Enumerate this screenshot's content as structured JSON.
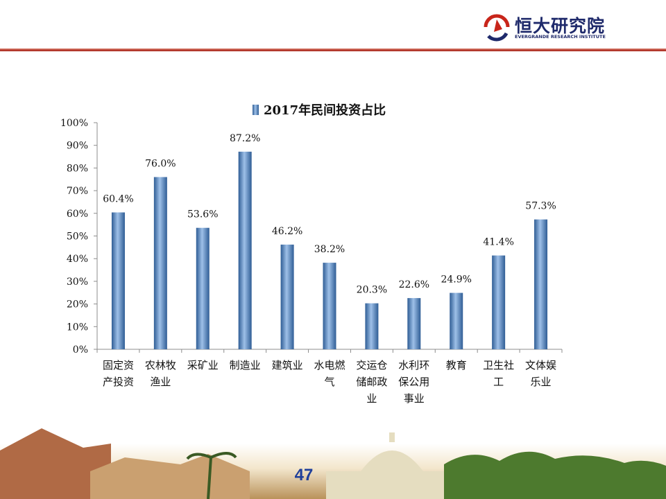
{
  "brand": {
    "name": "恒大研究院",
    "subtitle": "EVERGRANDE RESEARCH INSTITUTE",
    "colors": {
      "navy": "#1f2a6b",
      "red": "#c8251a",
      "rule": "#a52016"
    }
  },
  "page": {
    "number": "47"
  },
  "chart_data": {
    "type": "bar",
    "title": "",
    "legend": {
      "label": "2017年民间投资占比",
      "position": "top"
    },
    "categories": [
      [
        "固定资",
        "产投资"
      ],
      [
        "农林牧",
        "渔业"
      ],
      [
        "采矿业"
      ],
      [
        "制造业"
      ],
      [
        "建筑业"
      ],
      [
        "水电燃",
        "气"
      ],
      [
        "交运仓",
        "储邮政",
        "业"
      ],
      [
        "水利环",
        "保公用",
        "事业"
      ],
      [
        "教育"
      ],
      [
        "卫生社",
        "工"
      ],
      [
        "文体娱",
        "乐业"
      ]
    ],
    "series": [
      {
        "name": "2017年民间投资占比",
        "values": [
          60.4,
          76.0,
          53.6,
          87.2,
          46.2,
          38.2,
          20.3,
          22.6,
          24.9,
          41.4,
          57.3
        ],
        "labels": [
          "60.4%",
          "76.0%",
          "53.6%",
          "87.2%",
          "46.2%",
          "38.2%",
          "20.3%",
          "22.6%",
          "24.9%",
          "41.4%",
          "57.3%"
        ],
        "color": "#4f81bd"
      }
    ],
    "yticks": [
      "0%",
      "10%",
      "20%",
      "30%",
      "40%",
      "50%",
      "60%",
      "70%",
      "80%",
      "90%",
      "100%"
    ],
    "ylim": [
      0,
      100
    ],
    "grid": false
  }
}
